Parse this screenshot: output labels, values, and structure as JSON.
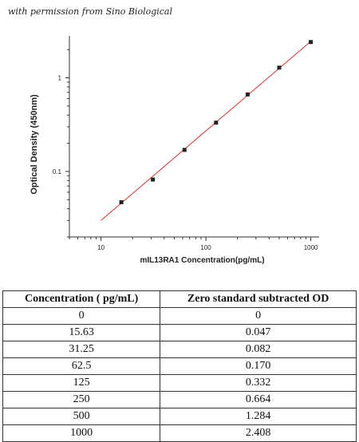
{
  "credit": "with permission from Sino Biological",
  "chart_data": {
    "type": "scatter",
    "xscale": "log",
    "yscale": "log",
    "xlabel": "mIL13RA1  Concentration(pg/mL)",
    "ylabel": "Optical Density (450nm)",
    "xlim": [
      5,
      1200
    ],
    "ylim": [
      0.02,
      2.8
    ],
    "xticks": [
      10,
      100,
      1000
    ],
    "xtick_labels": [
      "10",
      "100",
      "1000"
    ],
    "yticks": [
      0.1,
      1
    ],
    "ytick_labels": [
      "0.1",
      "1"
    ],
    "grid": false,
    "series": [
      {
        "x": [
          15.63,
          31.25,
          62.5,
          125,
          250,
          500,
          1000
        ],
        "y": [
          0.047,
          0.082,
          0.17,
          0.332,
          0.664,
          1.284,
          2.408
        ],
        "marker_color": "#222222"
      }
    ],
    "fit_line": {
      "x": [
        10,
        1000
      ],
      "y": [
        0.03,
        2.45
      ],
      "color": "#e03030"
    }
  },
  "table": {
    "headers": [
      "Concentration ( pg/mL)",
      "Zero standard subtracted OD"
    ],
    "rows": [
      [
        "0",
        "0"
      ],
      [
        "15.63",
        "0.047"
      ],
      [
        "31.25",
        "0.082"
      ],
      [
        "62.5",
        "0.170"
      ],
      [
        "125",
        "0.332"
      ],
      [
        "250",
        "0.664"
      ],
      [
        "500",
        "1.284"
      ],
      [
        "1000",
        "2.408"
      ]
    ]
  }
}
